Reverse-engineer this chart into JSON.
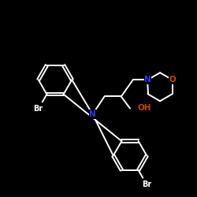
{
  "background_color": "#000000",
  "bond_color": "#ffffff",
  "atom_colors": {
    "N": "#3333ff",
    "O": "#cc4400",
    "Br": "#ffffff",
    "C": "#ffffff"
  },
  "fig_size": [
    2.5,
    2.5
  ],
  "dpi": 100
}
